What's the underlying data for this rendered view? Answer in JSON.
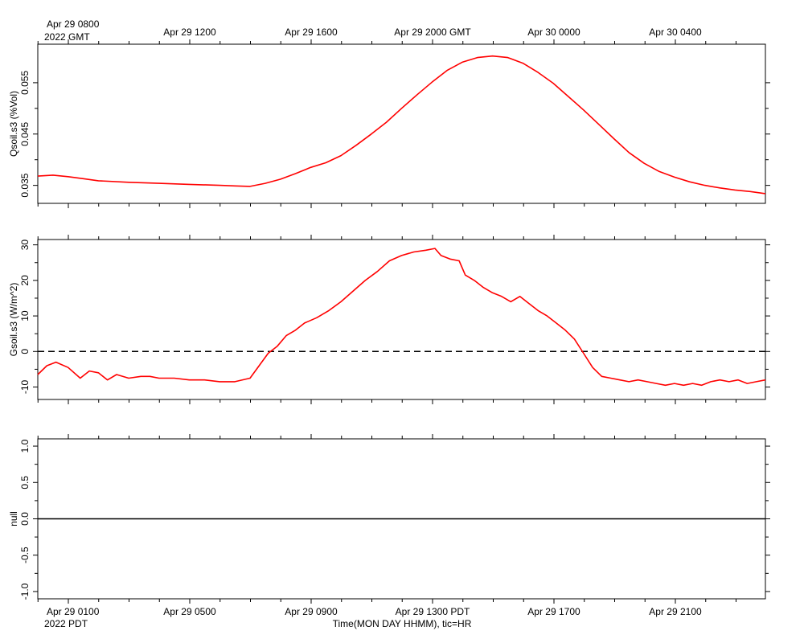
{
  "top_axis": {
    "first_label_line1": "Apr 29 0800",
    "first_label_line2": "2022 GMT",
    "labels": [
      "Apr 29 1200",
      "Apr 29 1600",
      "Apr 29 2000 GMT",
      "Apr 30 0000",
      "Apr 30 0400"
    ]
  },
  "bottom_axis": {
    "first_label_line1": "Apr 29 0100",
    "first_label_line2": "2022 PDT",
    "labels": [
      "Apr 29 0500",
      "Apr 29 0900",
      "Apr 29 1300 PDT",
      "Apr 29 1700",
      "Apr 29 2100"
    ],
    "title": "Time(MON DAY HHMM), tic=HR"
  },
  "colors": {
    "series": "#ff0000",
    "axis": "#000000"
  },
  "chart_data": [
    {
      "type": "line",
      "ylabel": "Qsoil.s3 (%Vol)",
      "ylim": [
        0.0315,
        0.0625
      ],
      "yticks": [
        0.035,
        0.045,
        0.055
      ],
      "ytick_labels": [
        "0.035",
        "0.045",
        "0.055"
      ],
      "x_unit": "hours since Apr 29 2022 0000 PDT",
      "xlim": [
        0.0,
        24.0
      ],
      "series": [
        {
          "x": [
            0.0,
            0.5,
            1.0,
            1.5,
            2.0,
            3.0,
            4.0,
            5.0,
            6.0,
            6.5,
            7.0,
            7.5,
            8.0,
            8.5,
            9.0,
            9.5,
            10.0,
            10.5,
            11.0,
            11.5,
            12.0,
            12.5,
            13.0,
            13.5,
            14.0,
            14.5,
            15.0,
            15.5,
            16.0,
            16.5,
            17.0,
            17.5,
            18.0,
            18.5,
            19.0,
            19.5,
            20.0,
            20.5,
            21.0,
            21.5,
            22.0,
            22.5,
            23.0,
            23.5,
            24.0
          ],
          "y": [
            0.0368,
            0.037,
            0.0367,
            0.0363,
            0.0359,
            0.0356,
            0.0354,
            0.0352,
            0.035,
            0.0349,
            0.0348,
            0.0354,
            0.0362,
            0.0373,
            0.0385,
            0.0394,
            0.0408,
            0.0428,
            0.045,
            0.0473,
            0.05,
            0.0526,
            0.0551,
            0.0574,
            0.059,
            0.0599,
            0.0602,
            0.0599,
            0.0588,
            0.057,
            0.0549,
            0.0523,
            0.0497,
            0.0469,
            0.0441,
            0.0414,
            0.0393,
            0.0377,
            0.0366,
            0.0357,
            0.035,
            0.0345,
            0.0341,
            0.0338,
            0.0334
          ]
        }
      ]
    },
    {
      "type": "line",
      "ylabel": "Gsoil.s3 (W/m^2)",
      "ylim": [
        -13.5,
        31.5
      ],
      "yticks": [
        -10,
        0,
        10,
        20,
        30
      ],
      "ytick_labels": [
        "-10",
        "0",
        "10",
        "20",
        "30"
      ],
      "reference_line": {
        "y": 0,
        "style": "dashed"
      },
      "x_unit": "hours since Apr 29 2022 0000 PDT",
      "xlim": [
        0.0,
        24.0
      ],
      "series": [
        {
          "x": [
            0.0,
            0.3,
            0.6,
            1.0,
            1.4,
            1.7,
            2.0,
            2.3,
            2.6,
            3.0,
            3.4,
            3.7,
            4.0,
            4.5,
            5.0,
            5.5,
            6.0,
            6.5,
            7.0,
            7.3,
            7.6,
            7.9,
            8.2,
            8.5,
            8.8,
            9.2,
            9.6,
            10.0,
            10.4,
            10.8,
            11.2,
            11.6,
            12.0,
            12.4,
            12.8,
            13.1,
            13.3,
            13.6,
            13.9,
            14.1,
            14.4,
            14.7,
            15.0,
            15.3,
            15.6,
            15.9,
            16.2,
            16.5,
            16.8,
            17.1,
            17.4,
            17.7,
            18.0,
            18.3,
            18.6,
            18.9,
            19.2,
            19.5,
            19.8,
            20.1,
            20.4,
            20.7,
            21.0,
            21.3,
            21.6,
            21.9,
            22.2,
            22.5,
            22.8,
            23.1,
            23.4,
            23.7,
            24.0
          ],
          "y": [
            -6.5,
            -4.0,
            -3.0,
            -4.5,
            -7.5,
            -5.5,
            -6.0,
            -8.0,
            -6.5,
            -7.5,
            -7.0,
            -7.0,
            -7.5,
            -7.5,
            -8.0,
            -8.0,
            -8.5,
            -8.5,
            -7.5,
            -4.0,
            -0.5,
            1.5,
            4.5,
            6.0,
            8.0,
            9.5,
            11.5,
            14.0,
            17.0,
            20.0,
            22.5,
            25.5,
            27.0,
            28.0,
            28.5,
            29.0,
            27.0,
            26.0,
            25.5,
            21.5,
            20.0,
            18.0,
            16.5,
            15.5,
            14.0,
            15.5,
            13.5,
            11.5,
            10.0,
            8.0,
            6.0,
            3.5,
            -0.5,
            -4.5,
            -7.0,
            -7.5,
            -8.0,
            -8.5,
            -8.0,
            -8.5,
            -9.0,
            -9.5,
            -9.0,
            -9.5,
            -9.0,
            -9.5,
            -8.5,
            -8.0,
            -8.5,
            -8.0,
            -9.0,
            -8.5,
            -8.0
          ]
        }
      ]
    },
    {
      "type": "line",
      "ylabel": "null",
      "ylim": [
        -1.1,
        1.1
      ],
      "yticks": [
        -1.0,
        -0.5,
        0.0,
        0.5,
        1.0
      ],
      "ytick_labels": [
        "-1.0",
        "-0.5",
        "0.0",
        "0.5",
        "1.0"
      ],
      "reference_line": {
        "y": 0.0,
        "style": "solid"
      },
      "x_unit": "hours since Apr 29 2022 0000 PDT",
      "xlim": [
        0.0,
        24.0
      ],
      "series": []
    }
  ]
}
